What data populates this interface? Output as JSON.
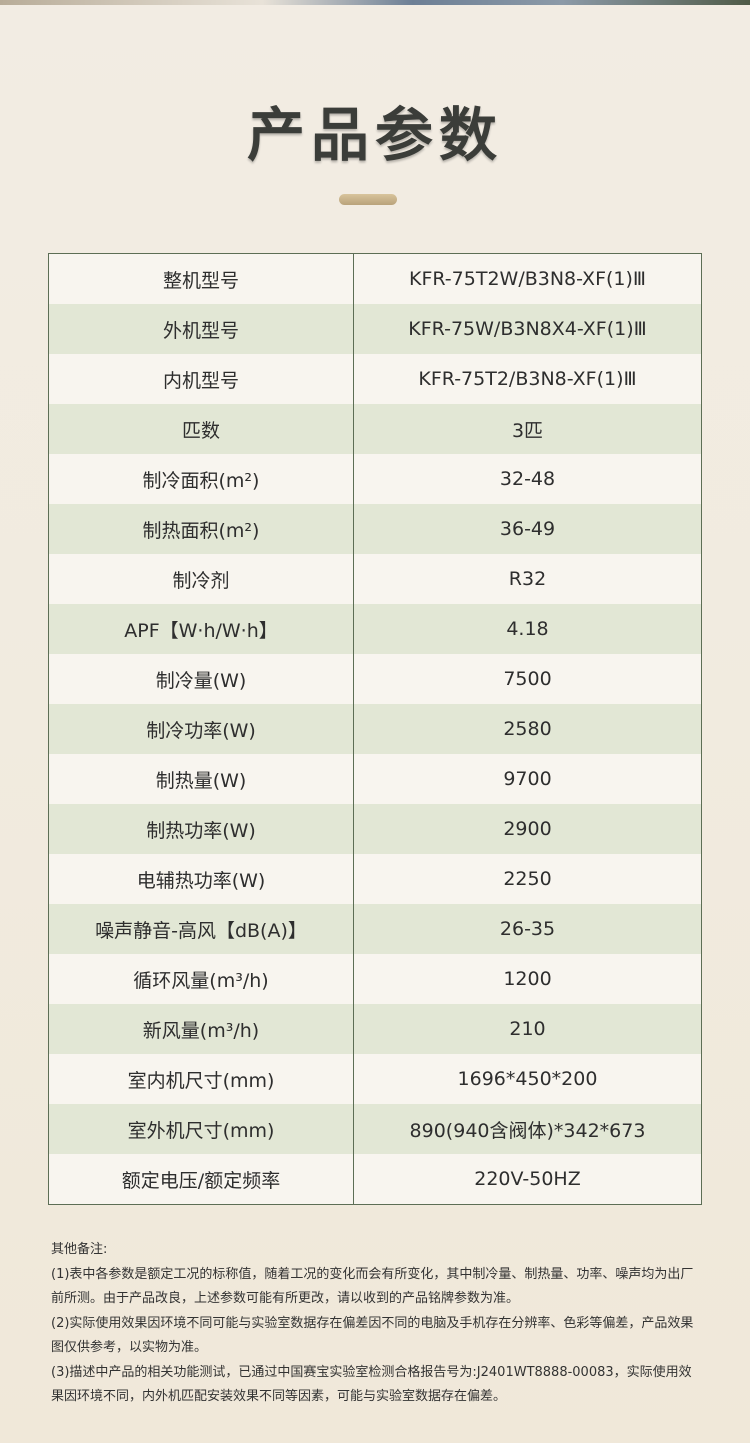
{
  "title": "产品参数",
  "specs": [
    {
      "label": "整机型号",
      "value": "KFR-75T2W/B3N8-XF(1)Ⅲ"
    },
    {
      "label": "外机型号",
      "value": "KFR-75W/B3N8X4-XF(1)Ⅲ"
    },
    {
      "label": "内机型号",
      "value": "KFR-75T2/B3N8-XF(1)Ⅲ"
    },
    {
      "label": "匹数",
      "value": "3匹"
    },
    {
      "label": "制冷面积(m²)",
      "value": "32-48"
    },
    {
      "label": "制热面积(m²)",
      "value": "36-49"
    },
    {
      "label": "制冷剂",
      "value": "R32"
    },
    {
      "label": "APF【W·h/W·h】",
      "value": "4.18"
    },
    {
      "label": "制冷量(W)",
      "value": "7500"
    },
    {
      "label": "制冷功率(W)",
      "value": "2580"
    },
    {
      "label": "制热量(W)",
      "value": "9700"
    },
    {
      "label": "制热功率(W)",
      "value": "2900"
    },
    {
      "label": "电辅热功率(W)",
      "value": "2250"
    },
    {
      "label": "噪声静音-高风【dB(A)】",
      "value": "26-35"
    },
    {
      "label": "循环风量(m³/h)",
      "value": "1200"
    },
    {
      "label": "新风量(m³/h)",
      "value": "210"
    },
    {
      "label": "室内机尺寸(mm)",
      "value": "1696*450*200"
    },
    {
      "label": "室外机尺寸(mm)",
      "value": "890(940含阀体)*342*673"
    },
    {
      "label": "额定电压/额定频率",
      "value": "220V-50HZ"
    }
  ],
  "notes": {
    "heading": "其他备注:",
    "items": [
      "(1)表中各参数是额定工况的标称值，随着工况的变化而会有所变化，其中制冷量、制热量、功率、噪声均为出厂前所测。由于产品改良，上述参数可能有所更改，请以收到的产品铭牌参数为准。",
      "(2)实际使用效果因环境不同可能与实验室数据存在偏差因不同的电脑及手机存在分辨率、色彩等偏差，产品效果图仅供参考，以实物为准。",
      "(3)描述中产品的相关功能测试，已通过中国赛宝实验室检测合格报告号为:J2401WT8888-00083，实际使用效果因环境不同，内外机匹配安装效果不同等因素，可能与实验室数据存在偏差。"
    ]
  }
}
